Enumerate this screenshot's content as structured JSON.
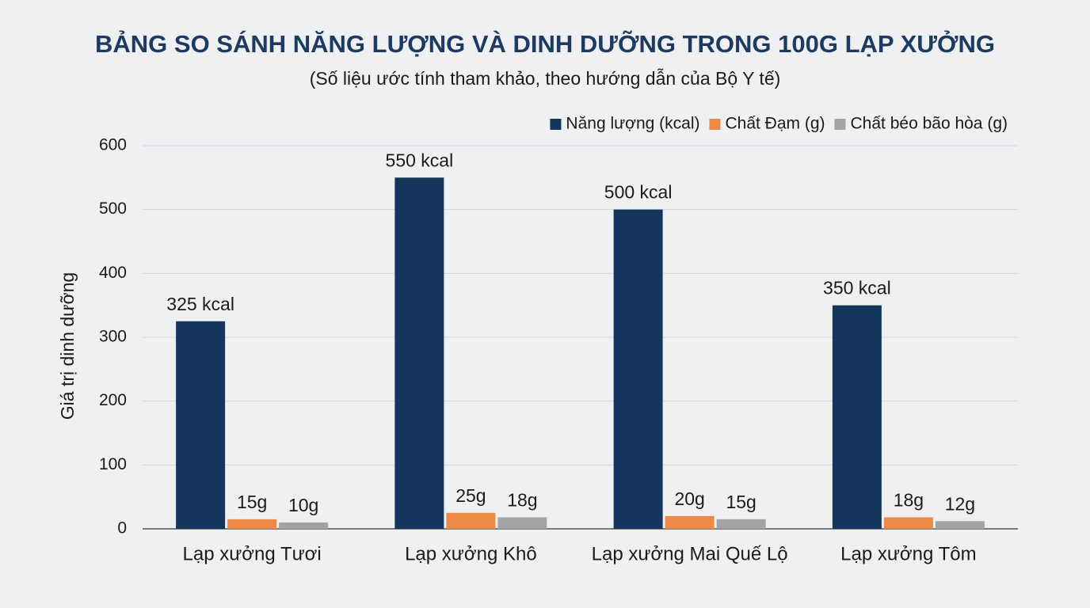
{
  "chart_data": {
    "type": "bar",
    "title": "BẢNG SO SÁNH NĂNG LƯỢNG VÀ DINH DƯỠNG TRONG 100G LẠP XƯỞNG",
    "subtitle": "(Số liệu ước tính tham khảo, theo hướng dẫn của Bộ Y tế)",
    "y_label": "Giá trị dinh dưỡng",
    "categories": [
      "Lạp xưởng Tươi",
      "Lạp xưởng Khô",
      "Lạp xưởng Mai Quế Lộ",
      "Lạp xưởng Tôm"
    ],
    "series": [
      {
        "name": "Năng lượng (kcal)",
        "color": "#14355c",
        "values": [
          325,
          550,
          500,
          350
        ],
        "value_labels": [
          "325 kcal",
          "550 kcal",
          "500 kcal",
          "350 kcal"
        ]
      },
      {
        "name": "Chất Đạm (g)",
        "color": "#ee8a45",
        "values": [
          15,
          25,
          20,
          18
        ],
        "value_labels": [
          "15g",
          "25g",
          "20g",
          "18g"
        ]
      },
      {
        "name": "Chất béo bão hòa (g)",
        "color": "#a3a3a3",
        "values": [
          10,
          18,
          15,
          12
        ],
        "value_labels": [
          "10g",
          "18g",
          "15g",
          "12g"
        ]
      }
    ],
    "ylim": [
      0,
      600
    ],
    "yticks": [
      0,
      100,
      200,
      300,
      400,
      500,
      600
    ],
    "grid": true,
    "legend": "top-right"
  }
}
